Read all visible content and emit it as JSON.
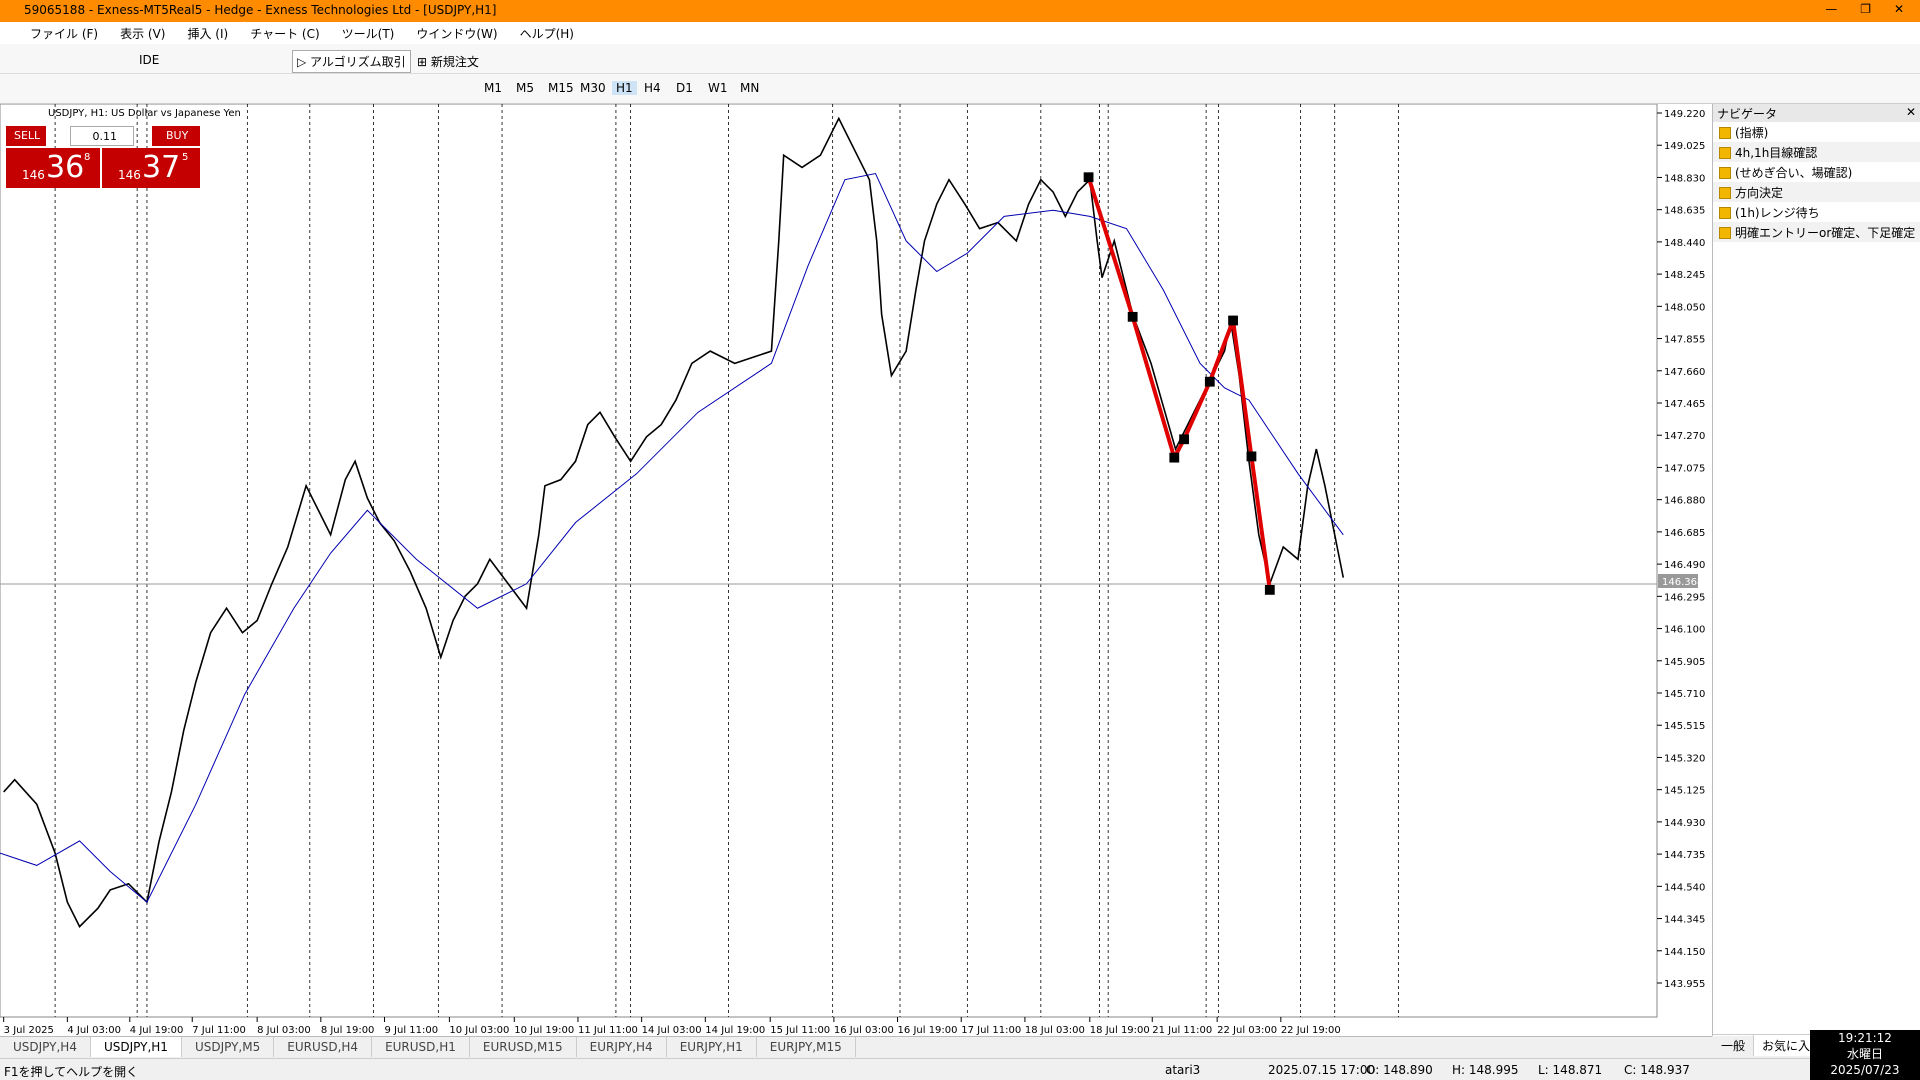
{
  "window": {
    "title": "59065188 - Exness-MT5Real5 - Hedge - Exness Technologies Ltd - [USDJPY,H1]"
  },
  "menu": [
    "ファイル (F)",
    "表示 (V)",
    "挿入 (I)",
    "チャート (C)",
    "ツール(T)",
    "ウインドウ(W)",
    "ヘルプ(H)"
  ],
  "toolbar": {
    "ide": "IDE",
    "algo": "アルゴリズム取引",
    "order": "新規注文"
  },
  "timeframes": [
    "M1",
    "M5",
    "M15",
    "M30",
    "H1",
    "H4",
    "D1",
    "W1",
    "MN"
  ],
  "chart": {
    "header": "USDJPY, H1:  US Dollar vs Japanese Yen",
    "trade": {
      "sell": "SELL",
      "lot": "0.11",
      "buy": "BUY",
      "sell_big": "146",
      "sell_mid": "36",
      "sell_sup": "8",
      "buy_big": "146",
      "buy_mid": "37",
      "buy_sup": "5"
    },
    "price_ticks": [
      "149.220",
      "149.025",
      "148.830",
      "148.635",
      "148.440",
      "148.245",
      "148.050",
      "147.855",
      "147.660",
      "147.465",
      "147.270",
      "147.075",
      "146.880",
      "146.685",
      "146.490",
      "146.295",
      "146.100",
      "145.905",
      "145.710",
      "145.515",
      "145.320",
      "145.125",
      "144.930",
      "144.735",
      "144.540",
      "144.345",
      "144.150",
      "143.955"
    ],
    "current_price": "146.368",
    "time_ticks": [
      "3 Jul 2025",
      "4 Jul 03:00",
      "4 Jul 19:00",
      "7 Jul 11:00",
      "8 Jul 03:00",
      "8 Jul 19:00",
      "9 Jul 11:00",
      "10 Jul 03:00",
      "10 Jul 19:00",
      "11 Jul 11:00",
      "14 Jul 03:00",
      "14 Jul 19:00",
      "15 Jul 11:00",
      "16 Jul 03:00",
      "16 Jul 19:00",
      "17 Jul 11:00",
      "18 Jul 03:00",
      "18 Jul 19:00",
      "21 Jul 11:00",
      "22 Jul 03:00",
      "22 Jul 19:00"
    ]
  },
  "navigator": {
    "title": "ナビゲータ",
    "items": [
      "(指標)",
      "4h,1h目線確認",
      "(せめぎ合い、場確認)",
      "方向決定",
      "(1h)レンジ待ち",
      "明確エントリーor確定、下足確定"
    ],
    "tabs": [
      "一般",
      "お気に入"
    ]
  },
  "tabs": [
    "USDJPY,H4",
    "USDJPY,H1",
    "USDJPY,M5",
    "EURUSD,H4",
    "EURUSD,H1",
    "EURUSD,M15",
    "EURJPY,H4",
    "EURJPY,H1",
    "EURJPY,M15"
  ],
  "status": {
    "help": "F1を押してヘルプを開く",
    "profile": "atari3",
    "time": "2025.07.15 17:00",
    "open": "O: 148.890",
    "high": "H: 148.995",
    "low": "L: 148.871",
    "close": "C: 148.937"
  },
  "clock": {
    "time": "19:21:12",
    "day": "水曜日",
    "date": "2025/07/23"
  }
}
